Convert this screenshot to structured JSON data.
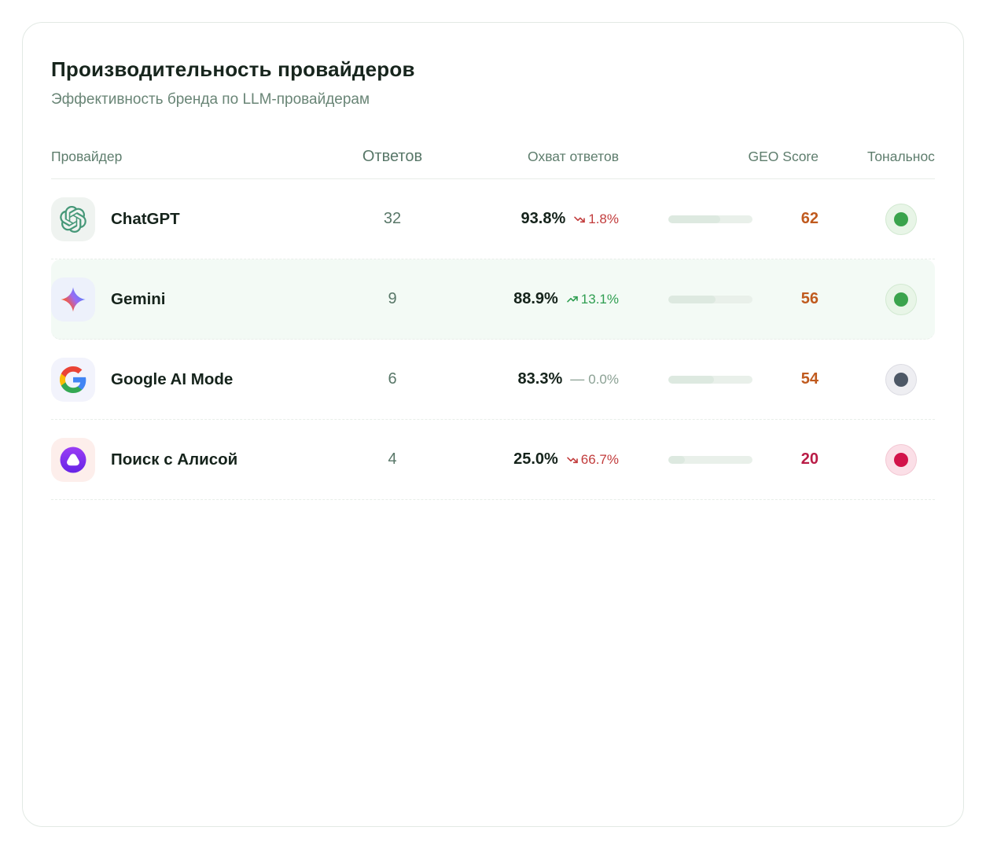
{
  "card": {
    "title": "Производительность провайдеров",
    "subtitle": "Эффективность бренда по LLM-провайдерам"
  },
  "table": {
    "columns": {
      "provider": "Провайдер",
      "answers": "Ответов",
      "coverage": "Охват ответов",
      "geo": "GEO Score",
      "tonality": "Тональность"
    },
    "rows": [
      {
        "name": "ChatGPT",
        "icon": "chatgpt-logo-icon",
        "answers": "32",
        "coverage": "93.8%",
        "trend_direction": "down",
        "trend_value": "1.8%",
        "geo_score": "62",
        "bar_percent": 62,
        "score_color": "orange",
        "tonality": "positive",
        "highlighted": false
      },
      {
        "name": "Gemini",
        "icon": "gemini-logo-icon",
        "answers": "9",
        "coverage": "88.9%",
        "trend_direction": "up",
        "trend_value": "13.1%",
        "geo_score": "56",
        "bar_percent": 56,
        "score_color": "orange",
        "tonality": "positive",
        "highlighted": true
      },
      {
        "name": "Google AI Mode",
        "icon": "google-logo-icon",
        "answers": "6",
        "coverage": "83.3%",
        "trend_direction": "flat",
        "trend_value": "0.0%",
        "geo_score": "54",
        "bar_percent": 54,
        "score_color": "orange",
        "tonality": "neutral",
        "highlighted": false
      },
      {
        "name": "Поиск с Алисой",
        "icon": "alice-logo-icon",
        "answers": "4",
        "coverage": "25.0%",
        "trend_direction": "down",
        "trend_value": "66.7%",
        "geo_score": "20",
        "bar_percent": 20,
        "score_color": "red",
        "tonality": "negative",
        "highlighted": false
      }
    ]
  },
  "colors": {
    "trend_up": "#2f9e51",
    "trend_down": "#c23c3c",
    "trend_flat": "#8ba194",
    "score_orange": "#c05a1e",
    "score_red": "#b91c46",
    "tonality_positive": {
      "bg": "#e8f5e7",
      "border": "#d2e9d1",
      "dot": "#3aa34c"
    },
    "tonality_neutral": {
      "bg": "#eeeef2",
      "border": "#dcdce3",
      "dot": "#4d5866"
    },
    "tonality_negative": {
      "bg": "#fbdfe7",
      "border": "#f3c8d3",
      "dot": "#d2134a"
    },
    "tile_bg": {
      "chatgpt-logo-icon": "#eff3f0",
      "gemini-logo-icon": "#edf1fb",
      "google-logo-icon": "#f2f3fc",
      "alice-logo-icon": "#fdeeeb"
    }
  }
}
